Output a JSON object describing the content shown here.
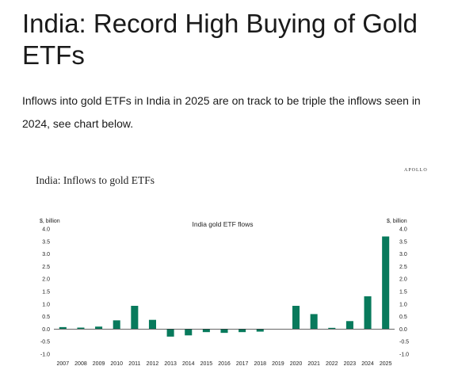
{
  "page": {
    "title": "India: Record High Buying of Gold ETFs",
    "intro": "Inflows into gold ETFs in India in 2025 are on track to be triple the inflows seen in 2024, see chart below."
  },
  "figure": {
    "brand": "APOLLO",
    "heading": "India: Inflows to gold ETFs"
  },
  "chart_data": {
    "type": "bar",
    "title": "India gold ETF flows",
    "ylabel_left": "$, billion",
    "ylabel_right": "$, billion",
    "xlabel": "",
    "ylim": [
      -1.0,
      4.0
    ],
    "yticks": [
      "4.0",
      "3.5",
      "3.0",
      "2.5",
      "2.0",
      "1.5",
      "1.0",
      "0.5",
      "0.0",
      "-0.5",
      "-1.0"
    ],
    "ytick_values": [
      4.0,
      3.5,
      3.0,
      2.5,
      2.0,
      1.5,
      1.0,
      0.5,
      0.0,
      -0.5,
      -1.0
    ],
    "yticks_right": [
      "4.0",
      "3.5",
      "3.0",
      "2.5",
      "2.0",
      "1.5",
      "1.0",
      "0.5",
      "0.0",
      "-0.5",
      "-1.0"
    ],
    "categories": [
      "2007",
      "2008",
      "2009",
      "2010",
      "2011",
      "2012",
      "2013",
      "2014",
      "2015",
      "2016",
      "2017",
      "2018",
      "2019",
      "2020",
      "2021",
      "2022",
      "2023",
      "2024",
      "2025"
    ],
    "values": [
      0.08,
      0.06,
      0.1,
      0.35,
      0.93,
      0.37,
      -0.3,
      -0.25,
      -0.12,
      -0.15,
      -0.12,
      -0.1,
      0.0,
      0.93,
      0.6,
      0.05,
      0.32,
      1.31,
      3.7
    ],
    "bar_color": "#087a5c",
    "grid": false,
    "legend": "none"
  }
}
